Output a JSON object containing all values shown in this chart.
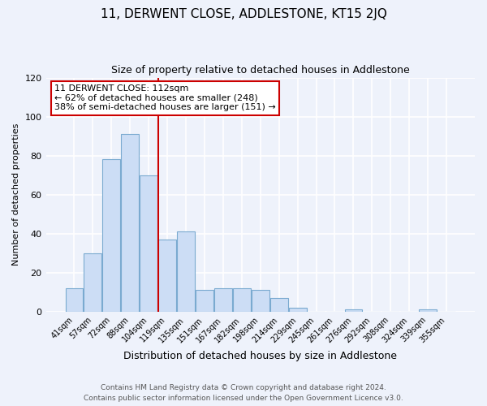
{
  "title": "11, DERWENT CLOSE, ADDLESTONE, KT15 2JQ",
  "subtitle": "Size of property relative to detached houses in Addlestone",
  "xlabel": "Distribution of detached houses by size in Addlestone",
  "ylabel": "Number of detached properties",
  "bar_labels": [
    "41sqm",
    "57sqm",
    "72sqm",
    "88sqm",
    "104sqm",
    "119sqm",
    "135sqm",
    "151sqm",
    "167sqm",
    "182sqm",
    "198sqm",
    "214sqm",
    "229sqm",
    "245sqm",
    "261sqm",
    "276sqm",
    "292sqm",
    "308sqm",
    "324sqm",
    "339sqm",
    "355sqm"
  ],
  "bar_values": [
    12,
    30,
    78,
    91,
    70,
    37,
    41,
    11,
    12,
    12,
    11,
    7,
    2,
    0,
    0,
    1,
    0,
    0,
    0,
    1,
    0
  ],
  "bar_color": "#ccddf5",
  "bar_edgecolor": "#7aaad0",
  "vline_x": 4.5,
  "vline_color": "#cc0000",
  "ylim": [
    0,
    120
  ],
  "yticks": [
    0,
    20,
    40,
    60,
    80,
    100,
    120
  ],
  "annotation_title": "11 DERWENT CLOSE: 112sqm",
  "annotation_line1": "← 62% of detached houses are smaller (248)",
  "annotation_line2": "38% of semi-detached houses are larger (151) →",
  "annotation_box_edgecolor": "#cc0000",
  "footer_line1": "Contains HM Land Registry data © Crown copyright and database right 2024.",
  "footer_line2": "Contains public sector information licensed under the Open Government Licence v3.0.",
  "background_color": "#eef2fb",
  "grid_color": "#ffffff",
  "title_fontsize": 11,
  "subtitle_fontsize": 9,
  "xlabel_fontsize": 9,
  "ylabel_fontsize": 8,
  "footer_fontsize": 6.5,
  "annot_fontsize": 8
}
